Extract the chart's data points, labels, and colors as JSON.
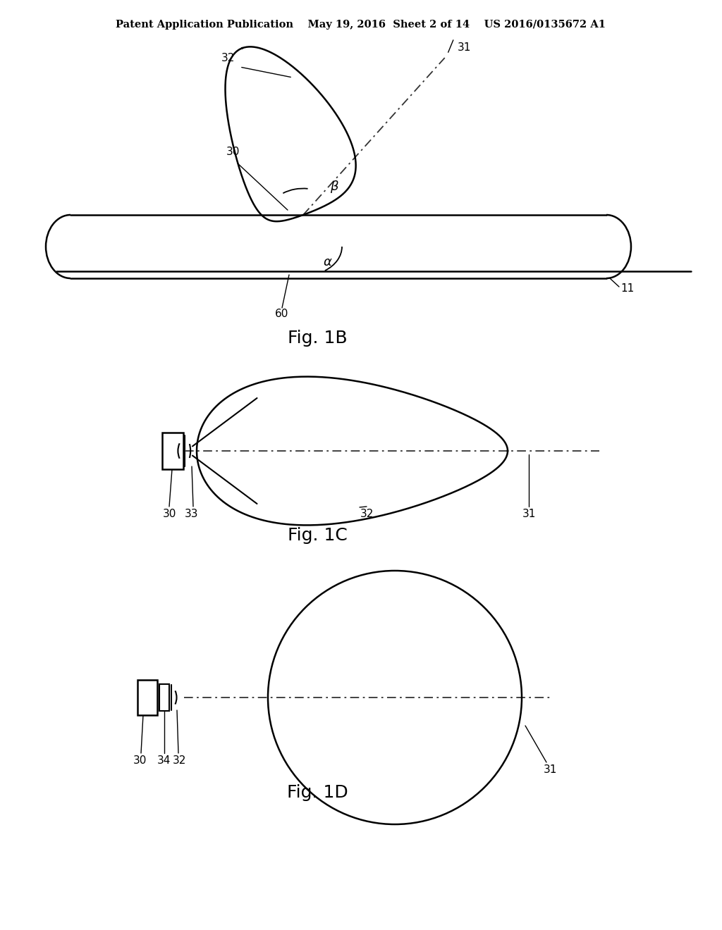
{
  "bg_color": "#ffffff",
  "line_color": "#000000",
  "header_text": "Patent Application Publication    May 19, 2016  Sheet 2 of 14    US 2016/0135672 A1",
  "fig1b_label": "Fig. 1B",
  "fig1c_label": "Fig. 1C",
  "fig1d_label": "Fig. 1D"
}
